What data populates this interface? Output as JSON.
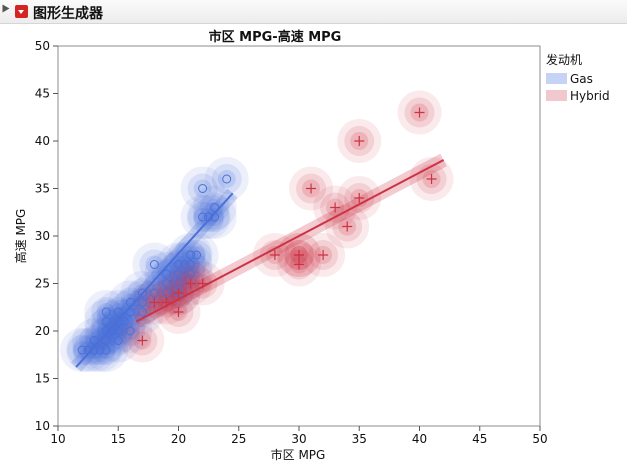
{
  "window": {
    "title": "图形生成器"
  },
  "chart_data": {
    "type": "scatter",
    "title": "市区 MPG-高速 MPG",
    "xlabel": "市区 MPG",
    "ylabel": "高速 MPG",
    "xlim": [
      10,
      50
    ],
    "ylim": [
      10,
      50
    ],
    "xticks": [
      "10",
      "15",
      "20",
      "25",
      "30",
      "35",
      "40",
      "45",
      "50"
    ],
    "yticks": [
      "10",
      "15",
      "20",
      "25",
      "30",
      "35",
      "40",
      "45",
      "50"
    ],
    "legend_title": "发动机",
    "legend_position": "right",
    "grid": false,
    "series": [
      {
        "name": "Gas",
        "marker": "circle",
        "color": "#4a6fd9",
        "fill": "#c6d3f5",
        "points": [
          [
            12,
            18
          ],
          [
            12.5,
            18
          ],
          [
            13,
            18
          ],
          [
            13,
            19
          ],
          [
            13.5,
            18
          ],
          [
            14,
            18
          ],
          [
            14,
            19
          ],
          [
            14,
            20
          ],
          [
            14,
            21
          ],
          [
            14,
            22
          ],
          [
            14.5,
            20
          ],
          [
            15,
            19
          ],
          [
            15,
            20
          ],
          [
            15,
            21
          ],
          [
            15,
            22
          ],
          [
            15.5,
            21
          ],
          [
            16,
            20
          ],
          [
            16,
            22
          ],
          [
            16,
            23
          ],
          [
            17,
            22
          ],
          [
            17,
            23
          ],
          [
            17,
            24
          ],
          [
            18,
            24
          ],
          [
            18,
            27
          ],
          [
            19,
            24
          ],
          [
            19,
            25
          ],
          [
            19,
            26
          ],
          [
            20,
            24
          ],
          [
            20,
            25
          ],
          [
            20,
            26
          ],
          [
            20,
            27
          ],
          [
            20.5,
            27
          ],
          [
            21,
            26
          ],
          [
            21,
            27
          ],
          [
            21,
            28
          ],
          [
            21.5,
            28
          ],
          [
            22,
            32
          ],
          [
            22,
            35
          ],
          [
            22.5,
            32
          ],
          [
            23,
            32
          ],
          [
            23,
            33
          ],
          [
            24,
            36
          ]
        ],
        "fit": {
          "x": [
            11.5,
            24.5
          ],
          "y": [
            16.2,
            34.5
          ]
        }
      },
      {
        "name": "Hybrid",
        "marker": "plus",
        "color": "#cc3344",
        "fill": "#f0c8ce",
        "points": [
          [
            17,
            19
          ],
          [
            18,
            23
          ],
          [
            19,
            23
          ],
          [
            20,
            22
          ],
          [
            20,
            24
          ],
          [
            21,
            25
          ],
          [
            22,
            25
          ],
          [
            28,
            28
          ],
          [
            30,
            27
          ],
          [
            30,
            28
          ],
          [
            30,
            28
          ],
          [
            31,
            35
          ],
          [
            32,
            28
          ],
          [
            33,
            33
          ],
          [
            34,
            31
          ],
          [
            35,
            34
          ],
          [
            35,
            40
          ],
          [
            40,
            43
          ],
          [
            41,
            36
          ]
        ],
        "fit": {
          "x": [
            16.5,
            42
          ],
          "y": [
            21.0,
            38.0
          ]
        }
      }
    ]
  }
}
